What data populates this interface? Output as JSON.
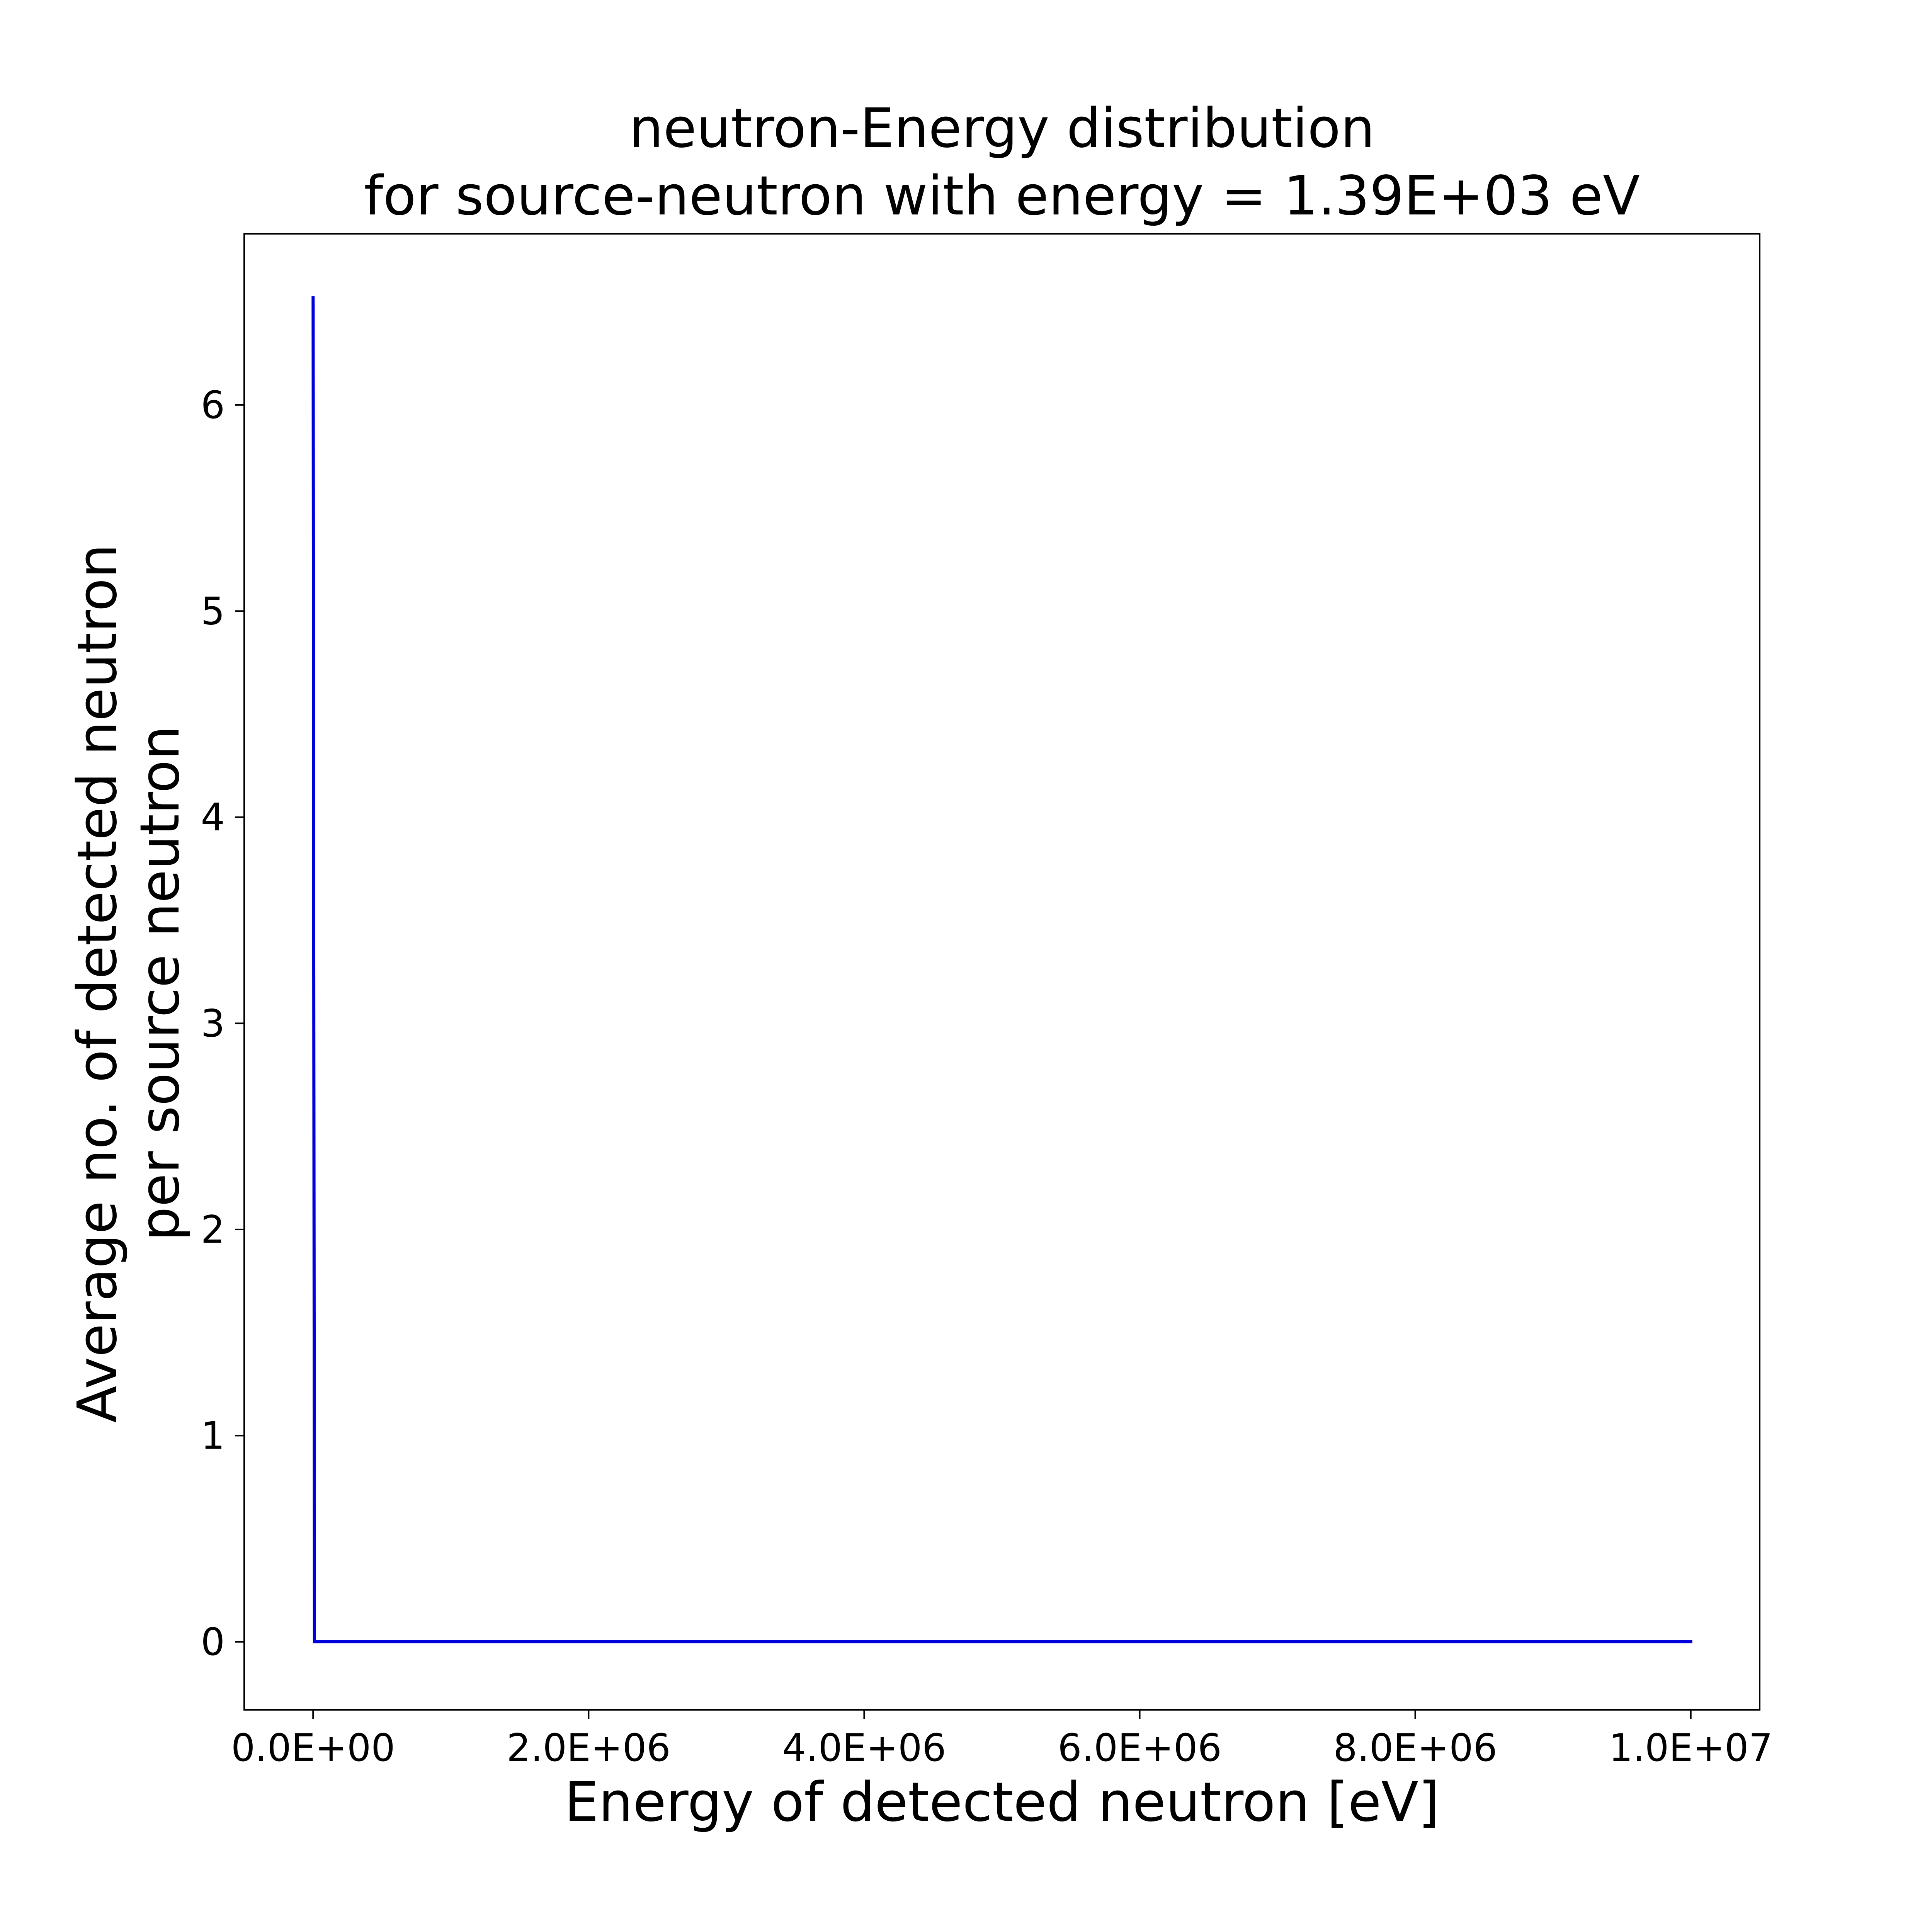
{
  "chart_data": {
    "type": "line",
    "title_lines": [
      "neutron-Energy distribution",
      "for source-neutron with energy = 1.39E+03 eV"
    ],
    "xlabel": "Energy of detected neutron [eV]",
    "ylabel_lines": [
      "Average no. of detected neutron",
      "per source neutron"
    ],
    "xlim": [
      -500000,
      10500000
    ],
    "ylim": [
      -0.33,
      6.83
    ],
    "xticks": [
      {
        "value": 0,
        "label": "0.0E+00"
      },
      {
        "value": 2000000,
        "label": "2.0E+06"
      },
      {
        "value": 4000000,
        "label": "4.0E+06"
      },
      {
        "value": 6000000,
        "label": "6.0E+06"
      },
      {
        "value": 8000000,
        "label": "8.0E+06"
      },
      {
        "value": 10000000,
        "label": "1.0E+07"
      }
    ],
    "yticks": [
      {
        "value": 0,
        "label": "0"
      },
      {
        "value": 1,
        "label": "1"
      },
      {
        "value": 2,
        "label": "2"
      },
      {
        "value": 3,
        "label": "3"
      },
      {
        "value": 4,
        "label": "4"
      },
      {
        "value": 5,
        "label": "5"
      },
      {
        "value": 6,
        "label": "6"
      }
    ],
    "grid": false,
    "legend": "none",
    "series": [
      {
        "color": "#0000dd",
        "x": [
          0,
          10000,
          20000,
          10000000
        ],
        "y": [
          6.52,
          0.0,
          0.0,
          0.0
        ]
      }
    ]
  }
}
